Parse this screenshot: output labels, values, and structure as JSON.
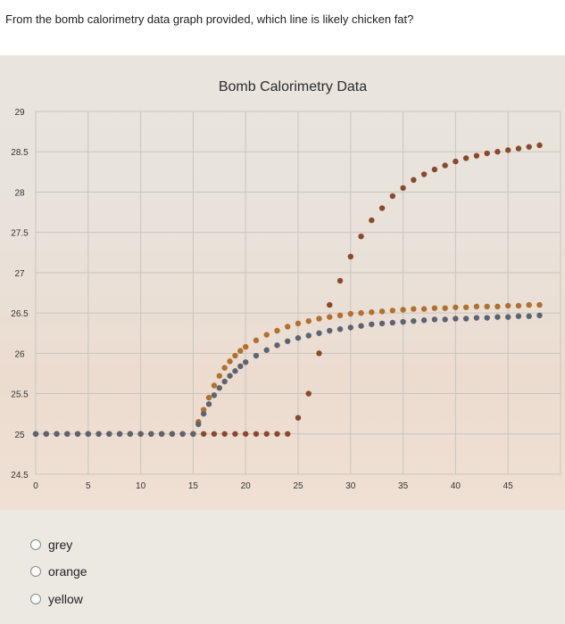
{
  "question": {
    "text": "From the bomb calorimetry data graph provided, which line is likely chicken fat?"
  },
  "options": [
    {
      "label": "grey",
      "selected": false
    },
    {
      "label": "orange",
      "selected": false
    },
    {
      "label": "yellow",
      "selected": false
    }
  ],
  "chart_data": {
    "type": "scatter",
    "title": "Bomb Calorimetry Data",
    "xlabel": "",
    "ylabel": "",
    "xlim": [
      0,
      50
    ],
    "ylim": [
      24.5,
      29
    ],
    "x_ticks": [
      0,
      5,
      10,
      15,
      20,
      25,
      30,
      35,
      40,
      45
    ],
    "y_ticks": [
      24.5,
      25,
      25.5,
      26,
      26.5,
      27,
      27.5,
      28,
      28.5,
      29
    ],
    "grid": true,
    "legend": "none",
    "series": [
      {
        "color": "#8a4a2a",
        "points": [
          [
            0,
            25
          ],
          [
            1,
            25
          ],
          [
            2,
            25
          ],
          [
            3,
            25
          ],
          [
            4,
            25
          ],
          [
            5,
            25
          ],
          [
            6,
            25
          ],
          [
            7,
            25
          ],
          [
            8,
            25
          ],
          [
            9,
            25
          ],
          [
            10,
            25
          ],
          [
            11,
            25
          ],
          [
            12,
            25
          ],
          [
            13,
            25
          ],
          [
            14,
            25
          ],
          [
            15,
            25
          ],
          [
            16,
            25
          ],
          [
            17,
            25
          ],
          [
            18,
            25
          ],
          [
            19,
            25
          ],
          [
            20,
            25
          ],
          [
            21,
            25
          ],
          [
            22,
            25
          ],
          [
            23,
            25
          ],
          [
            24,
            25
          ],
          [
            25,
            25.2
          ],
          [
            26,
            25.5
          ],
          [
            27,
            26.0
          ],
          [
            28,
            26.6
          ],
          [
            29,
            26.9
          ],
          [
            30,
            27.2
          ],
          [
            31,
            27.45
          ],
          [
            32,
            27.65
          ],
          [
            33,
            27.8
          ],
          [
            34,
            27.95
          ],
          [
            35,
            28.05
          ],
          [
            36,
            28.15
          ],
          [
            37,
            28.22
          ],
          [
            38,
            28.28
          ],
          [
            39,
            28.33
          ],
          [
            40,
            28.38
          ],
          [
            41,
            28.42
          ],
          [
            42,
            28.45
          ],
          [
            43,
            28.48
          ],
          [
            44,
            28.5
          ],
          [
            45,
            28.52
          ],
          [
            46,
            28.54
          ],
          [
            47,
            28.56
          ],
          [
            48,
            28.58
          ]
        ]
      },
      {
        "color": "#b0702e",
        "points": [
          [
            0,
            25
          ],
          [
            1,
            25
          ],
          [
            2,
            25
          ],
          [
            3,
            25
          ],
          [
            4,
            25
          ],
          [
            5,
            25
          ],
          [
            6,
            25
          ],
          [
            7,
            25
          ],
          [
            8,
            25
          ],
          [
            9,
            25
          ],
          [
            10,
            25
          ],
          [
            11,
            25
          ],
          [
            12,
            25
          ],
          [
            13,
            25
          ],
          [
            14,
            25
          ],
          [
            15,
            25
          ],
          [
            15.5,
            25.15
          ],
          [
            16,
            25.3
          ],
          [
            16.5,
            25.45
          ],
          [
            17,
            25.6
          ],
          [
            17.5,
            25.72
          ],
          [
            18,
            25.82
          ],
          [
            18.5,
            25.9
          ],
          [
            19,
            25.97
          ],
          [
            19.5,
            26.03
          ],
          [
            20,
            26.08
          ],
          [
            21,
            26.16
          ],
          [
            22,
            26.23
          ],
          [
            23,
            26.28
          ],
          [
            24,
            26.33
          ],
          [
            25,
            26.37
          ],
          [
            26,
            26.4
          ],
          [
            27,
            26.43
          ],
          [
            28,
            26.45
          ],
          [
            29,
            26.47
          ],
          [
            30,
            26.49
          ],
          [
            31,
            26.5
          ],
          [
            32,
            26.51
          ],
          [
            33,
            26.52
          ],
          [
            34,
            26.53
          ],
          [
            35,
            26.54
          ],
          [
            36,
            26.55
          ],
          [
            37,
            26.55
          ],
          [
            38,
            26.56
          ],
          [
            39,
            26.56
          ],
          [
            40,
            26.57
          ],
          [
            41,
            26.57
          ],
          [
            42,
            26.58
          ],
          [
            43,
            26.58
          ],
          [
            44,
            26.58
          ],
          [
            45,
            26.59
          ],
          [
            46,
            26.59
          ],
          [
            47,
            26.6
          ],
          [
            48,
            26.6
          ]
        ]
      },
      {
        "color": "#5c6470",
        "points": [
          [
            0,
            25
          ],
          [
            1,
            25
          ],
          [
            2,
            25
          ],
          [
            3,
            25
          ],
          [
            4,
            25
          ],
          [
            5,
            25
          ],
          [
            6,
            25
          ],
          [
            7,
            25
          ],
          [
            8,
            25
          ],
          [
            9,
            25
          ],
          [
            10,
            25
          ],
          [
            11,
            25
          ],
          [
            12,
            25
          ],
          [
            13,
            25
          ],
          [
            14,
            25
          ],
          [
            15,
            25
          ],
          [
            15.5,
            25.12
          ],
          [
            16,
            25.25
          ],
          [
            16.5,
            25.37
          ],
          [
            17,
            25.48
          ],
          [
            17.5,
            25.57
          ],
          [
            18,
            25.65
          ],
          [
            18.5,
            25.72
          ],
          [
            19,
            25.78
          ],
          [
            19.5,
            25.84
          ],
          [
            20,
            25.89
          ],
          [
            21,
            25.97
          ],
          [
            22,
            26.04
          ],
          [
            23,
            26.1
          ],
          [
            24,
            26.15
          ],
          [
            25,
            26.19
          ],
          [
            26,
            26.22
          ],
          [
            27,
            26.25
          ],
          [
            28,
            26.28
          ],
          [
            29,
            26.3
          ],
          [
            30,
            26.32
          ],
          [
            31,
            26.34
          ],
          [
            32,
            26.36
          ],
          [
            33,
            26.37
          ],
          [
            34,
            26.38
          ],
          [
            35,
            26.39
          ],
          [
            36,
            26.4
          ],
          [
            37,
            26.41
          ],
          [
            38,
            26.42
          ],
          [
            39,
            26.42
          ],
          [
            40,
            26.43
          ],
          [
            41,
            26.43
          ],
          [
            42,
            26.44
          ],
          [
            43,
            26.44
          ],
          [
            44,
            26.45
          ],
          [
            45,
            26.45
          ],
          [
            46,
            26.46
          ],
          [
            47,
            26.46
          ],
          [
            48,
            26.47
          ]
        ]
      }
    ]
  }
}
